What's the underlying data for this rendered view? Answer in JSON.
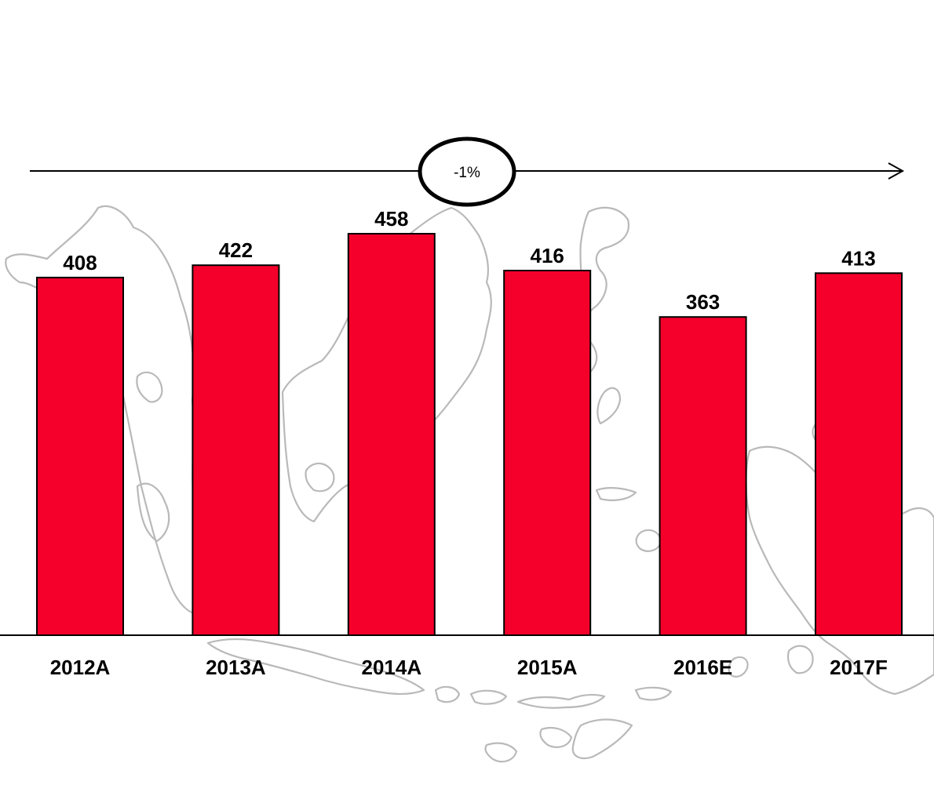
{
  "colors": {
    "bar_fill": "#f5002a",
    "bar_outline": "#000000",
    "map_outline": "#b9b9b9"
  },
  "background_icon": "indonesia-map-outline",
  "annotation": {
    "text": "-1%",
    "shape": "ellipse-on-arrow"
  },
  "chart_data": {
    "type": "bar",
    "categories": [
      "2012A",
      "2013A",
      "2014A",
      "2015A",
      "2016E",
      "2017F"
    ],
    "values": [
      408,
      422,
      458,
      416,
      363,
      413
    ],
    "data_labels": [
      "408",
      "422",
      "458",
      "416",
      "363",
      "413"
    ],
    "ylim": [
      0,
      458
    ],
    "grid": false,
    "legend": "none",
    "y_axis_visible": false
  }
}
